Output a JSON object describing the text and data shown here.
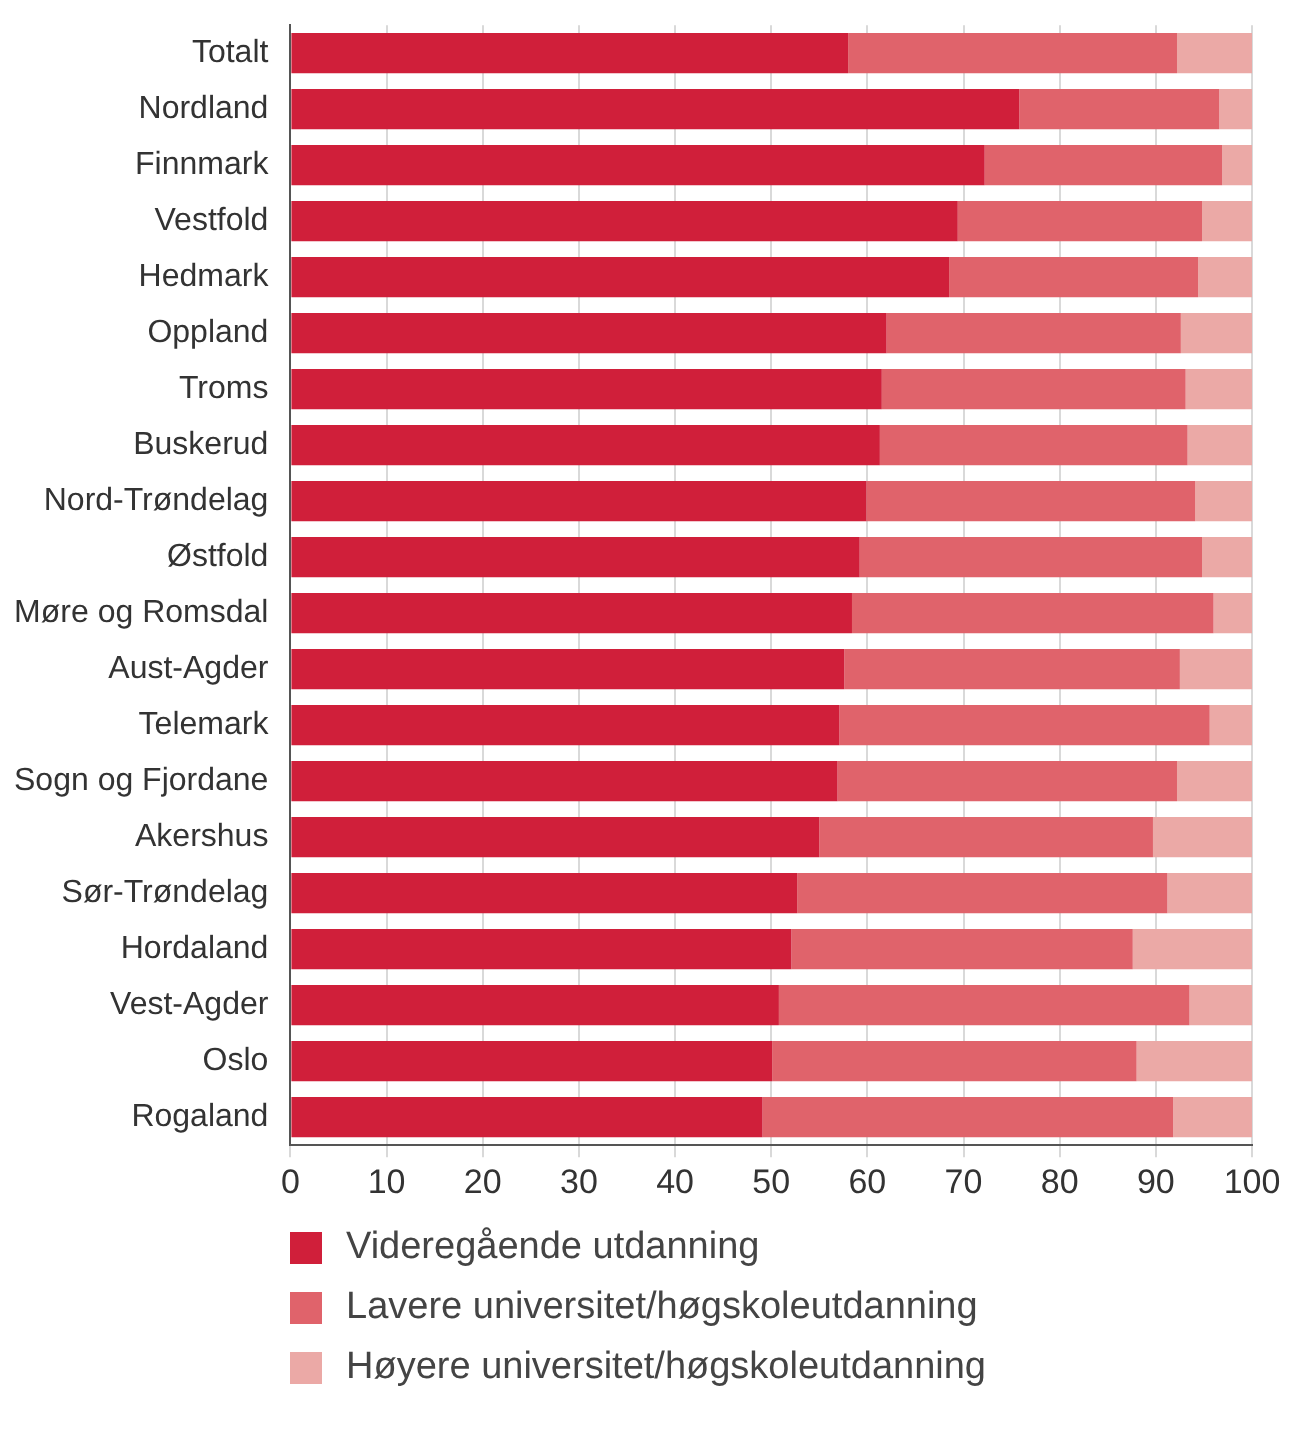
{
  "chart_data": {
    "type": "bar",
    "orientation": "horizontal",
    "stacked": true,
    "categories": [
      "Totalt",
      "Nordland",
      "Finnmark",
      "Vestfold",
      "Hedmark",
      "Oppland",
      "Troms",
      "Buskerud",
      "Nord-Trøndelag",
      "Østfold",
      "Møre og Romsdal",
      "Aust-Agder",
      "Telemark",
      "Sogn og Fjordane",
      "Akershus",
      "Sør-Trøndelag",
      "Hordaland",
      "Vest-Agder",
      "Oslo",
      "Rogaland"
    ],
    "series": [
      {
        "name": "Videregående utdanning",
        "color": "#d01f3a",
        "values": [
          58,
          75.8,
          72.2,
          69.4,
          68.5,
          62.0,
          61.5,
          61.3,
          59.9,
          59.2,
          58.4,
          57.6,
          57.1,
          56.9,
          55.0,
          52.7,
          52.1,
          50.8,
          50.1,
          49.1
        ]
      },
      {
        "name": "Lavere universitet/høgskoleutdanning",
        "color": "#e0636b",
        "values": [
          34.2,
          20.8,
          24.7,
          25.4,
          25.9,
          30.6,
          31.6,
          32.0,
          34.2,
          35.6,
          37.6,
          34.9,
          38.5,
          35.3,
          34.7,
          38.5,
          35.5,
          42.7,
          37.9,
          42.7
        ]
      },
      {
        "name": "Høyere universitet/høgskoleutdanning",
        "color": "#eba9a6",
        "values": [
          7.8,
          3.4,
          3.1,
          5.2,
          5.6,
          7.4,
          6.9,
          6.7,
          5.9,
          5.2,
          4.0,
          7.5,
          4.4,
          7.8,
          10.3,
          8.8,
          12.4,
          6.5,
          12.0,
          8.2
        ]
      }
    ],
    "xlim": [
      0,
      100
    ],
    "xticks": [
      0,
      10,
      20,
      30,
      40,
      50,
      60,
      70,
      80,
      90,
      100
    ],
    "grid": "x",
    "legend": "bottom"
  }
}
